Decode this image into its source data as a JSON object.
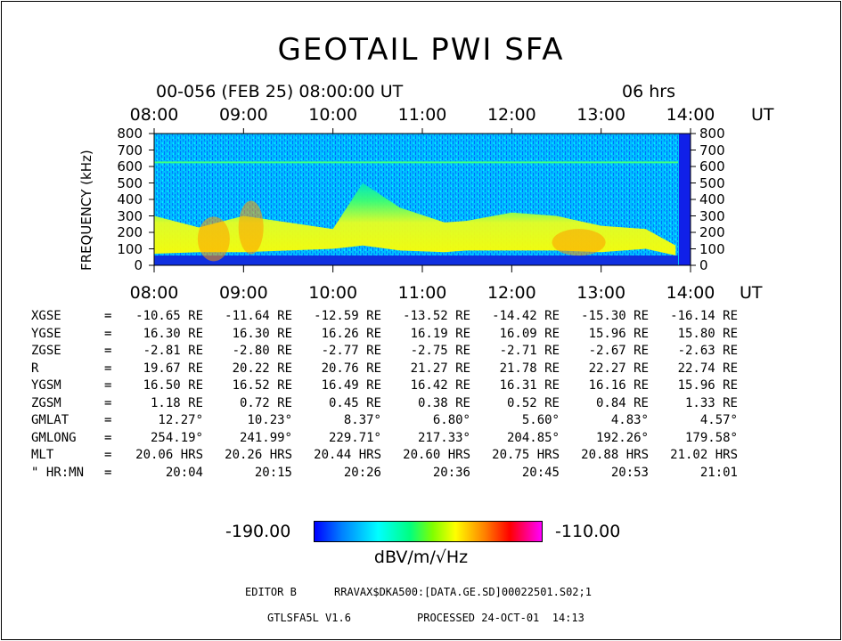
{
  "title": "GEOTAIL PWI SFA",
  "subtitle": "00-056 (FEB 25) 08:00:00 UT",
  "duration": "06 hrs",
  "time_axis": {
    "ticks": [
      "08:00",
      "09:00",
      "10:00",
      "11:00",
      "12:00",
      "13:00",
      "14:00"
    ],
    "unit": "UT"
  },
  "freq_axis": {
    "label": "FREQUENCY (kHz)",
    "ticks": [
      "800",
      "700",
      "600",
      "500",
      "400",
      "300",
      "200",
      "100",
      "0"
    ]
  },
  "ephemeris": {
    "rows": [
      {
        "label": "XGSE",
        "sep": "=",
        "values": [
          "-10.65 RE",
          "-11.64 RE",
          "-12.59 RE",
          "-13.52 RE",
          "-14.42 RE",
          "-15.30 RE",
          "-16.14 RE"
        ]
      },
      {
        "label": "YGSE",
        "sep": "=",
        "values": [
          "16.30 RE",
          "16.30 RE",
          "16.26 RE",
          "16.19 RE",
          "16.09 RE",
          "15.96 RE",
          "15.80 RE"
        ]
      },
      {
        "label": "ZGSE",
        "sep": "=",
        "values": [
          "-2.81 RE",
          "-2.80 RE",
          "-2.77 RE",
          "-2.75 RE",
          "-2.71 RE",
          "-2.67 RE",
          "-2.63 RE"
        ]
      },
      {
        "label": "R",
        "sep": "=",
        "values": [
          "19.67 RE",
          "20.22 RE",
          "20.76 RE",
          "21.27 RE",
          "21.78 RE",
          "22.27 RE",
          "22.74 RE"
        ]
      },
      {
        "label": "YGSM",
        "sep": "=",
        "values": [
          "16.50 RE",
          "16.52 RE",
          "16.49 RE",
          "16.42 RE",
          "16.31 RE",
          "16.16 RE",
          "15.96 RE"
        ]
      },
      {
        "label": "ZGSM",
        "sep": "=",
        "values": [
          "1.18 RE",
          "0.72 RE",
          "0.45 RE",
          "0.38 RE",
          "0.52 RE",
          "0.84 RE",
          "1.33 RE"
        ]
      },
      {
        "label": "GMLAT",
        "sep": "=",
        "values": [
          "12.27°",
          "10.23°",
          "8.37°",
          "6.80°",
          "5.60°",
          "4.83°",
          "4.57°"
        ]
      },
      {
        "label": "GMLONG",
        "sep": "=",
        "values": [
          "254.19°",
          "241.99°",
          "229.71°",
          "217.33°",
          "204.85°",
          "192.26°",
          "179.58°"
        ]
      },
      {
        "label": "MLT",
        "sep": "=",
        "values": [
          "20.06 HRS",
          "20.26 HRS",
          "20.44 HRS",
          "20.60 HRS",
          "20.75 HRS",
          "20.88 HRS",
          "21.02 HRS"
        ]
      },
      {
        "label": "\" HR:MN",
        "sep": "=",
        "values": [
          "20:04",
          "20:15",
          "20:26",
          "20:36",
          "20:45",
          "20:53",
          "21:01"
        ]
      }
    ]
  },
  "colorbar": {
    "min": "-190.00",
    "max": "-110.00",
    "unit": "dBV/m/√Hz"
  },
  "footer": {
    "editor": "EDITOR B",
    "path": "RRAVAX$DKA500:[DATA.GE.SD]00022501.S02;1",
    "version": "GTLSFA5L V1.6",
    "processed": "PROCESSED 24-OCT-01  14:13"
  },
  "chart_data": {
    "type": "heatmap",
    "title": "GEOTAIL PWI SFA",
    "subtitle": "00-056 (FEB 25) 08:00:00 UT",
    "xlabel": "UT",
    "ylabel": "FREQUENCY (kHz)",
    "x_ticks": [
      "08:00",
      "09:00",
      "10:00",
      "11:00",
      "12:00",
      "13:00",
      "14:00"
    ],
    "xlim": [
      "08:00",
      "14:00"
    ],
    "ylim": [
      0,
      800
    ],
    "y_ticks": [
      0,
      100,
      200,
      300,
      400,
      500,
      600,
      700,
      800
    ],
    "color_range": [
      -190.0,
      -110.0
    ],
    "color_unit": "dBV/m/√Hz",
    "colormap": [
      "#0000ff",
      "#00ffff",
      "#00ff00",
      "#ffff00",
      "#ff0000",
      "#ff00ff"
    ],
    "background_color": "#00c8ff",
    "features": [
      {
        "type": "line",
        "frequency": 625,
        "color": "#40ff80"
      },
      {
        "type": "band",
        "time": [
          "08:00",
          "14:00"
        ],
        "frequency_profile": [
          {
            "t": "08:00",
            "low": 70,
            "high": 300
          },
          {
            "t": "08:30",
            "low": 80,
            "high": 230
          },
          {
            "t": "09:00",
            "low": 80,
            "high": 300
          },
          {
            "t": "09:30",
            "low": 90,
            "high": 260
          },
          {
            "t": "10:00",
            "low": 100,
            "high": 220
          },
          {
            "t": "10:20",
            "low": 120,
            "high": 500
          },
          {
            "t": "10:45",
            "low": 90,
            "high": 350
          },
          {
            "t": "11:15",
            "low": 80,
            "high": 260
          },
          {
            "t": "11:30",
            "low": 90,
            "high": 270
          },
          {
            "t": "12:00",
            "low": 90,
            "high": 320
          },
          {
            "t": "12:30",
            "low": 90,
            "high": 300
          },
          {
            "t": "13:00",
            "low": 80,
            "high": 240
          },
          {
            "t": "13:30",
            "low": 100,
            "high": 220
          },
          {
            "t": "13:50",
            "low": 60,
            "high": 120
          }
        ]
      }
    ]
  }
}
